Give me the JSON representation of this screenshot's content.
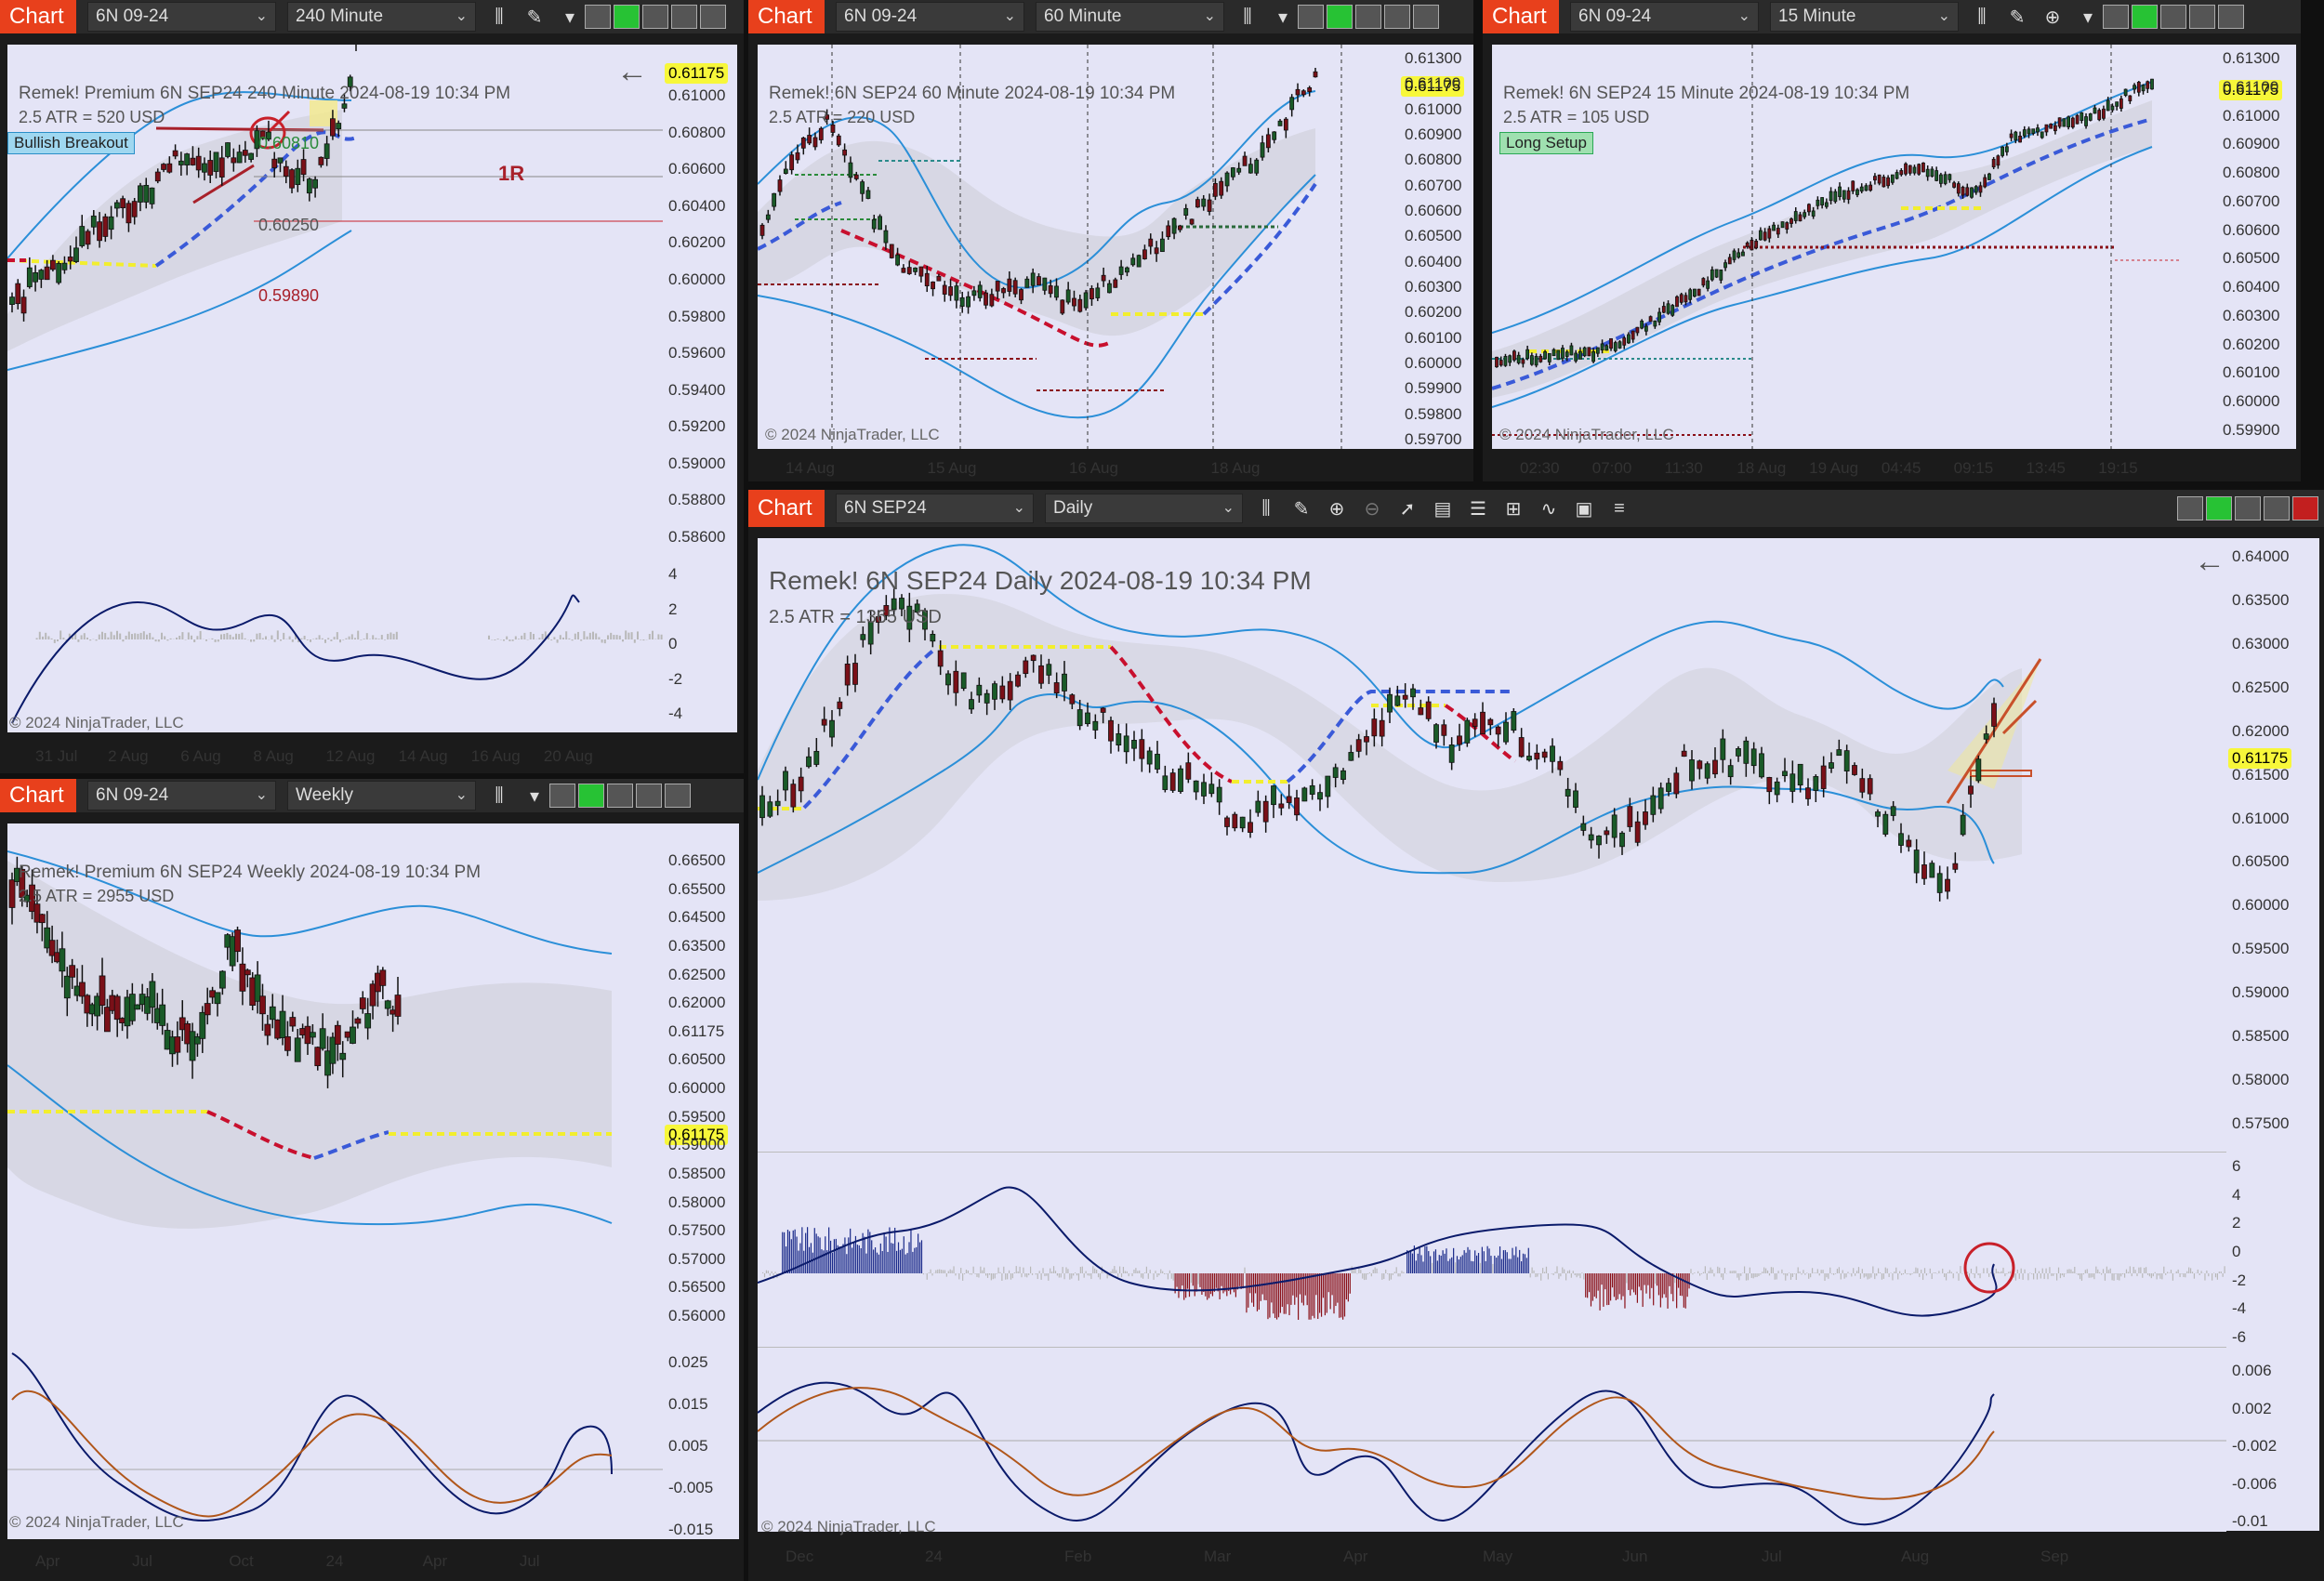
{
  "windows": {
    "w240": {
      "chart_label": "Chart",
      "instrument": "6N 09-24",
      "period": "240 Minute",
      "header": "Remek!  Premium  6N SEP24  240 Minute  2024-08-19 10:34 PM",
      "atr": "2.5 ATR = 520 USD",
      "tag": "Bullish Breakout",
      "price_tag": "0.61175",
      "labels": {
        "top": "0.60810",
        "mid": "0.60250",
        "low": "0.59890",
        "r": "1R"
      },
      "copyright": "© 2024 NinjaTrader, LLC",
      "yticks": [
        "0.61000",
        "0.60800",
        "0.60600",
        "0.60400",
        "0.60200",
        "0.60000",
        "0.59800",
        "0.59600",
        "0.59400",
        "0.59200",
        "0.59000",
        "0.58800",
        "0.58600"
      ],
      "osc_ticks": [
        "4",
        "2",
        "0",
        "-2",
        "-4"
      ],
      "xticks": [
        "31 Jul",
        "2 Aug",
        "6 Aug",
        "8 Aug",
        "12 Aug",
        "14 Aug",
        "16 Aug",
        "20 Aug"
      ]
    },
    "w60": {
      "chart_label": "Chart",
      "instrument": "6N 09-24",
      "period": "60 Minute",
      "header": "Remek!  6N SEP24  60 Minute  2024-08-19 10:34 PM",
      "atr": "2.5 ATR = 220 USD",
      "price_tag": "0.61175",
      "copyright": "© 2024 NinjaTrader, LLC",
      "yticks": [
        "0.61300",
        "0.61100",
        "0.61000",
        "0.60900",
        "0.60800",
        "0.60700",
        "0.60600",
        "0.60500",
        "0.60400",
        "0.60300",
        "0.60200",
        "0.60100",
        "0.60000",
        "0.59900",
        "0.59800",
        "0.59700"
      ],
      "xticks": [
        "14 Aug",
        "15 Aug",
        "16 Aug",
        "18 Aug"
      ]
    },
    "w15": {
      "chart_label": "Chart",
      "instrument": "6N 09-24",
      "period": "15 Minute",
      "header": "Remek!  6N SEP24  15 Minute  2024-08-19 10:34 PM",
      "atr": "2.5 ATR = 105 USD",
      "tag": "Long Setup",
      "price_tag": "0.61175",
      "copyright": "© 2024 NinjaTrader, LLC",
      "yticks": [
        "0.61300",
        "0.61100",
        "0.61000",
        "0.60900",
        "0.60800",
        "0.60700",
        "0.60600",
        "0.60500",
        "0.60400",
        "0.60300",
        "0.60200",
        "0.60100",
        "0.60000",
        "0.59900"
      ],
      "xticks": [
        "02:30",
        "07:00",
        "11:30",
        "18 Aug",
        "19 Aug",
        "04:45",
        "09:15",
        "13:45",
        "19:15"
      ]
    },
    "wweek": {
      "chart_label": "Chart",
      "instrument": "6N 09-24",
      "period": "Weekly",
      "header": "Remek!  Premium  6N SEP24  Weekly  2024-08-19 10:34 PM",
      "atr": "2.5 ATR = 2955 USD",
      "price_tag": "0.61175",
      "copyright": "© 2024 NinjaTrader, LLC",
      "yticks": [
        "0.66500",
        "0.65500",
        "0.64500",
        "0.63500",
        "0.62500",
        "0.62000",
        "0.61175",
        "0.60500",
        "0.60000",
        "0.59500",
        "0.59000",
        "0.58500",
        "0.58000",
        "0.57500",
        "0.57000",
        "0.56500",
        "0.56000"
      ],
      "osc_ticks": [
        "0.025",
        "0.015",
        "0.005",
        "-0.005",
        "-0.015"
      ],
      "xticks": [
        "Apr",
        "Jul",
        "Oct",
        "24",
        "Apr",
        "Jul"
      ]
    },
    "wdaily": {
      "chart_label": "Chart",
      "instrument": "6N SEP24",
      "period": "Daily",
      "header": "Remek!  6N SEP24  Daily  2024-08-19 10:34 PM",
      "atr": "2.5 ATR = 1365 USD",
      "price_tag": "0.61175",
      "copyright": "© 2024 NinjaTrader, LLC",
      "yticks": [
        "0.64000",
        "0.63500",
        "0.63000",
        "0.62500",
        "0.62000",
        "0.61500",
        "0.61000",
        "0.60500",
        "0.60000",
        "0.59500",
        "0.59000",
        "0.58500",
        "0.58000",
        "0.57500"
      ],
      "osc1_ticks": [
        "6",
        "4",
        "2",
        "0",
        "-2",
        "-4",
        "-6"
      ],
      "osc2_ticks": [
        "0.006",
        "0.002",
        "-0.002",
        "-0.006",
        "-0.01"
      ],
      "xticks": [
        "Dec",
        "24",
        "Feb",
        "Mar",
        "Apr",
        "May",
        "Jun",
        "Jul",
        "Aug",
        "Sep"
      ]
    }
  },
  "colors": {
    "chart_button": "#e8401c",
    "panel_bg": "#e4e4f6",
    "band": "#2b8fd8",
    "price_tag": "#f7f73a",
    "bull": "#1a5a28",
    "bear": "#7a1018"
  }
}
